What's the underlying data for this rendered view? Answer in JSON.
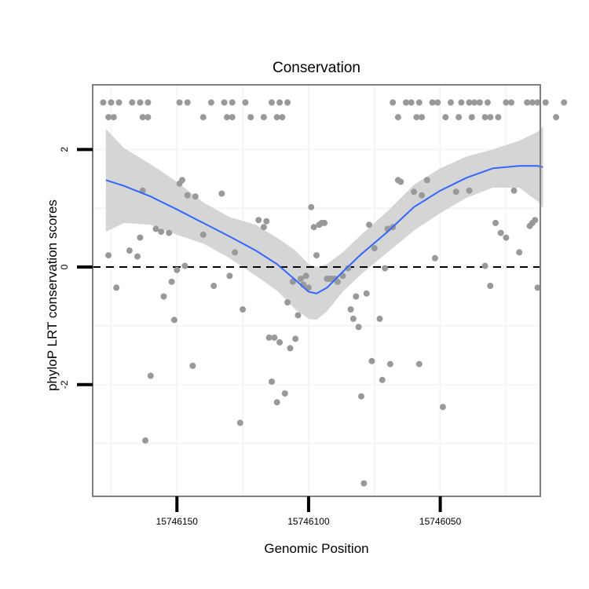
{
  "chart_data": {
    "type": "scatter",
    "title": "Conservation",
    "xlabel": "Genomic Position",
    "ylabel": "phyloP LRT conservation scores",
    "x_reversed": true,
    "xlim": [
      15746182,
      15746012
    ],
    "ylim": [
      -3.9,
      3.1
    ],
    "x_ticks": [
      {
        "value": 15746150,
        "label": "15746150"
      },
      {
        "value": 15746100,
        "label": "15746100"
      },
      {
        "value": 15746050,
        "label": "15746050"
      }
    ],
    "y_ticks": [
      {
        "value": 2,
        "label": "2"
      },
      {
        "value": 0,
        "label": "0"
      },
      {
        "value": -2,
        "label": "-2"
      }
    ],
    "reference_line": {
      "y": 0,
      "style": "dashed"
    },
    "grid": true,
    "colors": {
      "points": "#999999",
      "smooth": "#3366ff",
      "ribbon": "#d3d3d3",
      "panel_border": "#7f7f7f",
      "grid": "#f5f5f5"
    },
    "points": [
      [
        15746178,
        2.8
      ],
      [
        15746175,
        2.8
      ],
      [
        15746172,
        2.8
      ],
      [
        15746167,
        2.8
      ],
      [
        15746164,
        2.8
      ],
      [
        15746161,
        2.8
      ],
      [
        15746149,
        2.8
      ],
      [
        15746146,
        2.8
      ],
      [
        15746137,
        2.8
      ],
      [
        15746132,
        2.8
      ],
      [
        15746129,
        2.8
      ],
      [
        15746124,
        2.8
      ],
      [
        15746114,
        2.8
      ],
      [
        15746111,
        2.8
      ],
      [
        15746108,
        2.8
      ],
      [
        15746176,
        2.55
      ],
      [
        15746174,
        2.55
      ],
      [
        15746163,
        2.55
      ],
      [
        15746161,
        2.55
      ],
      [
        15746140,
        2.55
      ],
      [
        15746131,
        2.55
      ],
      [
        15746129,
        2.55
      ],
      [
        15746122,
        2.55
      ],
      [
        15746117,
        2.55
      ],
      [
        15746112,
        2.55
      ],
      [
        15746110,
        2.55
      ],
      [
        15746068,
        2.8
      ],
      [
        15746063,
        2.8
      ],
      [
        15746061,
        2.8
      ],
      [
        15746058,
        2.8
      ],
      [
        15746053,
        2.8
      ],
      [
        15746051,
        2.8
      ],
      [
        15746046,
        2.8
      ],
      [
        15746042,
        2.8
      ],
      [
        15746039,
        2.8
      ],
      [
        15746037,
        2.8
      ],
      [
        15746035,
        2.8
      ],
      [
        15746032,
        2.8
      ],
      [
        15746025,
        2.8
      ],
      [
        15746023,
        2.8
      ],
      [
        15746017,
        2.8
      ],
      [
        15746015,
        2.8
      ],
      [
        15746013,
        2.8
      ],
      [
        15746010,
        2.8
      ],
      [
        15746003,
        2.8
      ],
      [
        15746066,
        2.55
      ],
      [
        15746059,
        2.55
      ],
      [
        15746057,
        2.55
      ],
      [
        15746048,
        2.55
      ],
      [
        15746043,
        2.55
      ],
      [
        15746038,
        2.55
      ],
      [
        15746033,
        2.55
      ],
      [
        15746031,
        2.55
      ],
      [
        15746028,
        2.55
      ],
      [
        15746006,
        2.55
      ],
      [
        15746176,
        0.2
      ],
      [
        15746173,
        -0.35
      ],
      [
        15746168,
        0.28
      ],
      [
        15746165,
        0.18
      ],
      [
        15746164,
        0.5
      ],
      [
        15746163,
        1.3
      ],
      [
        15746160,
        -1.85
      ],
      [
        15746162,
        -2.95
      ],
      [
        15746158,
        0.65
      ],
      [
        15746156,
        0.6
      ],
      [
        15746155,
        -0.5
      ],
      [
        15746153,
        0.58
      ],
      [
        15746152,
        -0.25
      ],
      [
        15746151,
        -0.9
      ],
      [
        15746150,
        -0.05
      ],
      [
        15746149,
        1.42
      ],
      [
        15746148,
        1.48
      ],
      [
        15746147,
        0.02
      ],
      [
        15746146,
        1.22
      ],
      [
        15746144,
        -1.68
      ],
      [
        15746143,
        1.2
      ],
      [
        15746140,
        0.55
      ],
      [
        15746136,
        -0.32
      ],
      [
        15746133,
        1.25
      ],
      [
        15746130,
        -0.15
      ],
      [
        15746128,
        0.25
      ],
      [
        15746126,
        -2.65
      ],
      [
        15746125,
        -0.72
      ],
      [
        15746119,
        0.8
      ],
      [
        15746117,
        0.68
      ],
      [
        15746116,
        0.78
      ],
      [
        15746115,
        -1.2
      ],
      [
        15746113,
        -1.2
      ],
      [
        15746114,
        -1.95
      ],
      [
        15746112,
        -2.3
      ],
      [
        15746111,
        -1.28
      ],
      [
        15746109,
        -2.15
      ],
      [
        15746108,
        -0.6
      ],
      [
        15746107,
        -1.38
      ],
      [
        15746106,
        -0.25
      ],
      [
        15746105,
        -1.22
      ],
      [
        15746104,
        -0.82
      ],
      [
        15746103,
        -0.2
      ],
      [
        15746102,
        -0.3
      ],
      [
        15746101,
        -0.15
      ],
      [
        15746100,
        -0.35
      ],
      [
        15746099,
        1.02
      ],
      [
        15746098,
        0.68
      ],
      [
        15746097,
        0.2
      ],
      [
        15746096,
        0.72
      ],
      [
        15746095,
        0.75
      ],
      [
        15746094,
        0.75
      ],
      [
        15746093,
        -0.2
      ],
      [
        15746092,
        -0.2
      ],
      [
        15746091,
        -0.2
      ],
      [
        15746090,
        -0.2
      ],
      [
        15746089,
        -0.25
      ],
      [
        15746087,
        -0.15
      ],
      [
        15746085,
        -0.02
      ],
      [
        15746084,
        -0.72
      ],
      [
        15746083,
        -0.88
      ],
      [
        15746082,
        -0.5
      ],
      [
        15746081,
        -1.02
      ],
      [
        15746080,
        -2.2
      ],
      [
        15746079,
        -3.68
      ],
      [
        15746078,
        -0.45
      ],
      [
        15746077,
        0.72
      ],
      [
        15746076,
        -1.6
      ],
      [
        15746075,
        0.32
      ],
      [
        15746073,
        -0.88
      ],
      [
        15746072,
        -1.92
      ],
      [
        15746071,
        -0.02
      ],
      [
        15746070,
        0.65
      ],
      [
        15746069,
        -1.65
      ],
      [
        15746068,
        0.68
      ],
      [
        15746066,
        1.48
      ],
      [
        15746065,
        1.45
      ],
      [
        15746060,
        1.28
      ],
      [
        15746058,
        -1.65
      ],
      [
        15746057,
        1.22
      ],
      [
        15746055,
        1.48
      ],
      [
        15746052,
        0.15
      ],
      [
        15746049,
        -2.38
      ],
      [
        15746044,
        1.28
      ],
      [
        15746039,
        1.3
      ],
      [
        15746033,
        0.02
      ],
      [
        15746031,
        -0.32
      ],
      [
        15746029,
        0.75
      ],
      [
        15746027,
        0.58
      ],
      [
        15746025,
        0.5
      ],
      [
        15746022,
        1.3
      ],
      [
        15746020,
        0.25
      ],
      [
        15746016,
        0.7
      ],
      [
        15746015,
        0.75
      ],
      [
        15746014,
        0.8
      ],
      [
        15746013,
        -0.35
      ]
    ],
    "smooth_line": [
      [
        15746177,
        1.48
      ],
      [
        15746170,
        1.38
      ],
      [
        15746160,
        1.2
      ],
      [
        15746150,
        0.98
      ],
      [
        15746140,
        0.75
      ],
      [
        15746130,
        0.52
      ],
      [
        15746120,
        0.28
      ],
      [
        15746112,
        0.05
      ],
      [
        15746105,
        -0.22
      ],
      [
        15746100,
        -0.42
      ],
      [
        15746097,
        -0.45
      ],
      [
        15746093,
        -0.35
      ],
      [
        15746087,
        -0.08
      ],
      [
        15746080,
        0.22
      ],
      [
        15746070,
        0.6
      ],
      [
        15746060,
        1.02
      ],
      [
        15746050,
        1.3
      ],
      [
        15746040,
        1.52
      ],
      [
        15746030,
        1.68
      ],
      [
        15746020,
        1.72
      ],
      [
        15746013,
        1.72
      ],
      [
        15746011,
        1.7
      ]
    ],
    "ribbon_upper": [
      [
        15746177,
        2.35
      ],
      [
        15746170,
        2.02
      ],
      [
        15746160,
        1.75
      ],
      [
        15746150,
        1.45
      ],
      [
        15746140,
        1.1
      ],
      [
        15746130,
        0.85
      ],
      [
        15746120,
        0.72
      ],
      [
        15746112,
        0.5
      ],
      [
        15746105,
        0.28
      ],
      [
        15746100,
        0.05
      ],
      [
        15746097,
        0.0
      ],
      [
        15746093,
        0.05
      ],
      [
        15746087,
        0.25
      ],
      [
        15746080,
        0.55
      ],
      [
        15746070,
        0.95
      ],
      [
        15746060,
        1.4
      ],
      [
        15746050,
        1.68
      ],
      [
        15746040,
        1.88
      ],
      [
        15746030,
        2.0
      ],
      [
        15746020,
        2.15
      ],
      [
        15746013,
        2.3
      ],
      [
        15746011,
        2.4
      ]
    ],
    "ribbon_lower": [
      [
        15746177,
        0.6
      ],
      [
        15746170,
        0.75
      ],
      [
        15746160,
        0.72
      ],
      [
        15746150,
        0.55
      ],
      [
        15746140,
        0.4
      ],
      [
        15746130,
        0.15
      ],
      [
        15746120,
        -0.15
      ],
      [
        15746112,
        -0.4
      ],
      [
        15746105,
        -0.72
      ],
      [
        15746100,
        -0.88
      ],
      [
        15746097,
        -0.9
      ],
      [
        15746093,
        -0.75
      ],
      [
        15746087,
        -0.42
      ],
      [
        15746080,
        -0.12
      ],
      [
        15746070,
        0.25
      ],
      [
        15746060,
        0.62
      ],
      [
        15746050,
        0.92
      ],
      [
        15746040,
        1.18
      ],
      [
        15746030,
        1.35
      ],
      [
        15746020,
        1.35
      ],
      [
        15746013,
        1.12
      ],
      [
        15746011,
        1.0
      ]
    ]
  }
}
